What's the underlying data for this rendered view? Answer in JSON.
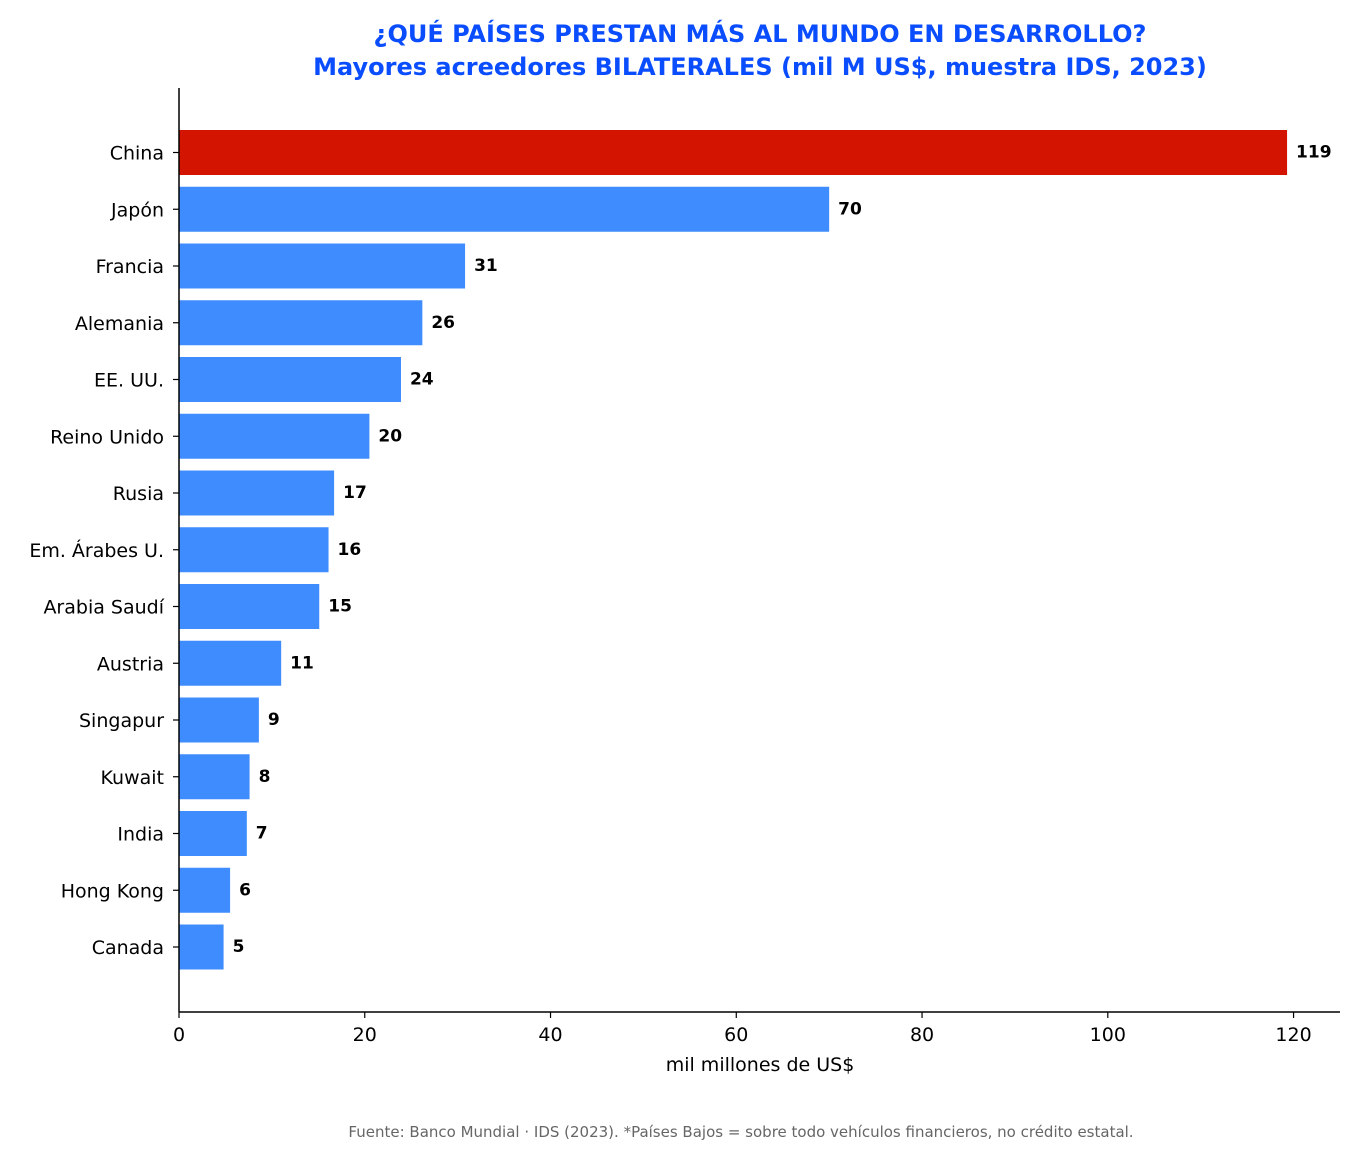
{
  "chart_data": {
    "type": "bar",
    "orientation": "horizontal",
    "title": "¿QUÉ PAÍSES PRESTAN MÁS AL MUNDO EN DESARROLLO?",
    "subtitle": "Mayores acreedores BILATERALES (mil M US$, muestra IDS, 2023)",
    "xlabel": "mil millones de US$",
    "ylabel": "",
    "xlim": [
      0,
      125
    ],
    "xticks": [
      0,
      20,
      40,
      60,
      80,
      100,
      120
    ],
    "grid": false,
    "categories": [
      "China",
      "Japón",
      "Francia",
      "Alemania",
      "EE. UU.",
      "Reino Unido",
      "Rusia",
      "Em. Árabes U.",
      "Arabia Saudí",
      "Austria",
      "Singapur",
      "Kuwait",
      "India",
      "Hong Kong",
      "Canada"
    ],
    "values": [
      119.3,
      70,
      30.8,
      26.2,
      23.9,
      20.5,
      16.7,
      16.1,
      15.1,
      11,
      8.6,
      7.6,
      7.3,
      5.5,
      4.8
    ],
    "data_labels": [
      "119",
      "70",
      "31",
      "26",
      "24",
      "20",
      "17",
      "16",
      "15",
      "11",
      "9",
      "8",
      "7",
      "6",
      "5"
    ],
    "highlight": "China",
    "colors": {
      "highlight": "#d31400",
      "bars": "#3f8cff",
      "title": "#0a4dff"
    }
  },
  "footer": {
    "source": "Fuente: Banco Mundial · IDS (2023). *Países Bajos = sobre todo vehículos financieros, no crédito estatal."
  }
}
